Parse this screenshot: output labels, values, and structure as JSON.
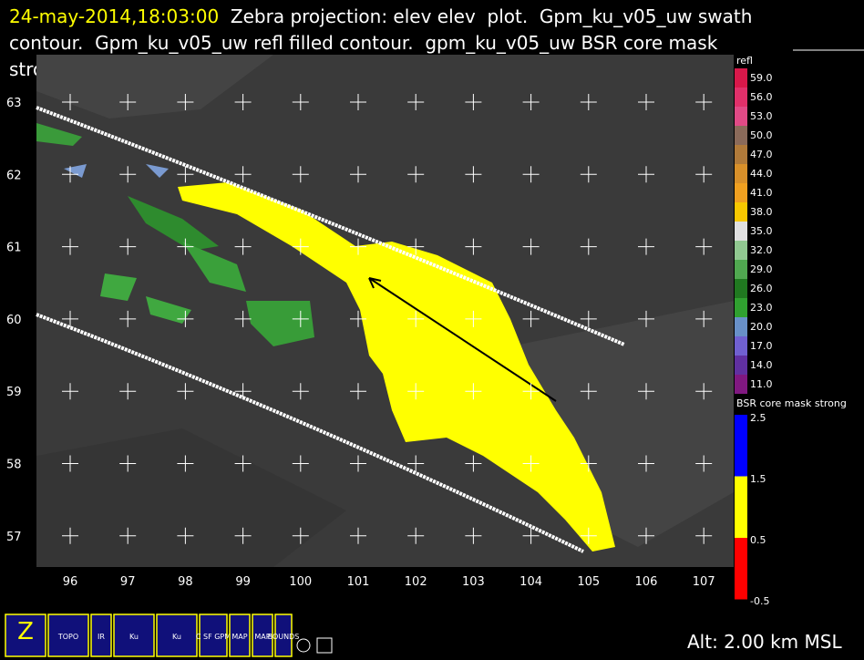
{
  "header": {
    "timestamp": "24-may-2014,18:03:00",
    "lines": [
      "  Zebra projection: elev elev  plot.  Gpm_ku_v05_uw swath",
      "contour.  Gpm_ku_v05_uw refl filled contour.  gpm_ku_v05_uw BSR core mask",
      "strong  plot."
    ]
  },
  "plot": {
    "x_labels": [
      "96",
      "97",
      "98",
      "99",
      "100",
      "101",
      "102",
      "103",
      "104",
      "105",
      "106",
      "107"
    ],
    "y_labels": [
      "63",
      "62",
      "61",
      "60",
      "59",
      "58",
      "57"
    ]
  },
  "refl_legend": {
    "title": "refl",
    "labels": [
      "59.0",
      "56.0",
      "53.0",
      "50.0",
      "47.0",
      "44.0",
      "41.0",
      "38.0",
      "35.0",
      "32.0",
      "29.0",
      "26.0",
      "23.0",
      "20.0",
      "17.0",
      "14.0",
      "11.0"
    ],
    "colors": [
      "#d8184a",
      "#e0306a",
      "#e04a86",
      "#8a6a5a",
      "#b07a3a",
      "#d8902a",
      "#f0a020",
      "#f8c800",
      "#e0e0e0",
      "#90c890",
      "#50a850",
      "#207820",
      "#30a030",
      "#6890c8",
      "#7060d0",
      "#6030a0",
      "#801880"
    ]
  },
  "bsr_legend": {
    "title": "BSR core mask strong",
    "labels": [
      "2.5",
      "1.5",
      "0.5",
      "-0.5"
    ],
    "colors": [
      "#0000ff",
      "#ffff00",
      "#ff0000"
    ]
  },
  "toolbar": {
    "icons": [
      "Z",
      "TOPO",
      "IR",
      "Ku",
      "Ku",
      "C SF GPM",
      "MAP",
      "MAP",
      "BOUNDS"
    ]
  },
  "status": {
    "altitude": "Alt: 2.00 km MSL"
  }
}
